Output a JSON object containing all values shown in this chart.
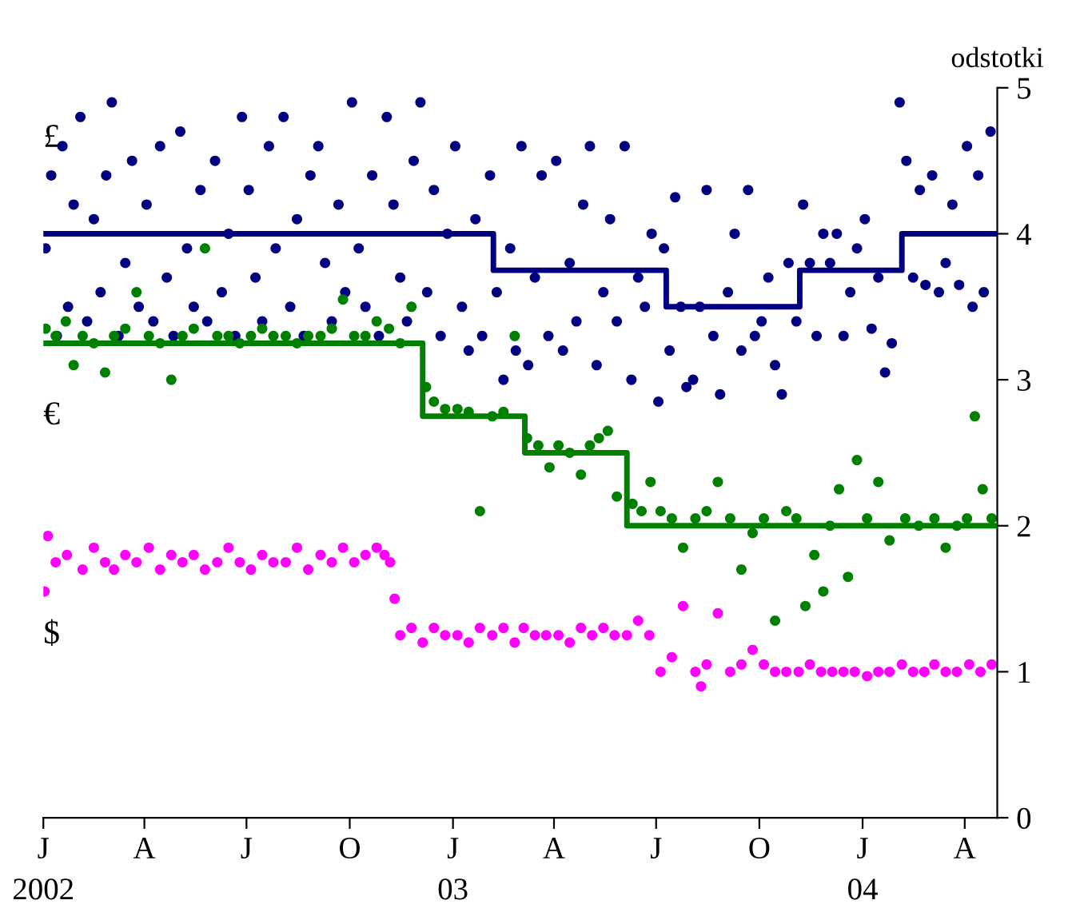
{
  "chart_data": {
    "type": "scatter",
    "ylabel": "odstotki",
    "xlim": [
      "2002-01-01",
      "2004-04-30"
    ],
    "xticks": [
      {
        "value": "2002-01-01",
        "label": "J\n2002"
      },
      {
        "value": "2002-04-01",
        "label": "A"
      },
      {
        "value": "2002-07-01",
        "label": "J"
      },
      {
        "value": "2002-10-01",
        "label": "O"
      },
      {
        "value": "2003-01-01",
        "label": "J\n03"
      },
      {
        "value": "2003-04-01",
        "label": "A"
      },
      {
        "value": "2003-07-01",
        "label": "J"
      },
      {
        "value": "2003-10-01",
        "label": "O"
      },
      {
        "value": "2004-01-01",
        "label": "J\n04"
      },
      {
        "value": "2004-04-01",
        "label": "A"
      }
    ],
    "ylim": [
      0,
      5
    ],
    "yticks": [
      0,
      1,
      2,
      3,
      4,
      5
    ],
    "grid": false,
    "legend": false,
    "marker": "circle",
    "series": [
      {
        "name": "£",
        "color": "#000080",
        "x": [
          "2002-01-03",
          "2002-01-08",
          "2002-01-13",
          "2002-01-18",
          "2002-01-23",
          "2002-01-28",
          "2002-02-03",
          "2002-02-09",
          "2002-02-15",
          "2002-02-21",
          "2002-02-26",
          "2002-03-03",
          "2002-03-09",
          "2002-03-15",
          "2002-03-21",
          "2002-03-27",
          "2002-04-03",
          "2002-04-09",
          "2002-04-15",
          "2002-04-21",
          "2002-04-27",
          "2002-05-03",
          "2002-05-09",
          "2002-05-15",
          "2002-05-21",
          "2002-05-27",
          "2002-06-03",
          "2002-06-09",
          "2002-06-15",
          "2002-06-21",
          "2002-06-27",
          "2002-07-03",
          "2002-07-09",
          "2002-07-15",
          "2002-07-21",
          "2002-07-27",
          "2002-08-03",
          "2002-08-09",
          "2002-08-15",
          "2002-08-21",
          "2002-08-27",
          "2002-09-03",
          "2002-09-09",
          "2002-09-15",
          "2002-09-21",
          "2002-09-27",
          "2002-10-03",
          "2002-10-09",
          "2002-10-15",
          "2002-10-21",
          "2002-10-27",
          "2002-11-03",
          "2002-11-09",
          "2002-11-15",
          "2002-11-21",
          "2002-11-27",
          "2002-12-03",
          "2002-12-09",
          "2002-12-15",
          "2002-12-21",
          "2002-12-27",
          "2003-01-03",
          "2003-01-09",
          "2003-01-15",
          "2003-01-21",
          "2003-01-27",
          "2003-02-03",
          "2003-02-09",
          "2003-02-15",
          "2003-02-21",
          "2003-02-26",
          "2003-03-03",
          "2003-03-09",
          "2003-03-15",
          "2003-03-21",
          "2003-03-27",
          "2003-04-03",
          "2003-04-09",
          "2003-04-15",
          "2003-04-21",
          "2003-04-27",
          "2003-05-03",
          "2003-05-09",
          "2003-05-15",
          "2003-05-21",
          "2003-05-27",
          "2003-06-03",
          "2003-06-09",
          "2003-06-15",
          "2003-06-21",
          "2003-06-27",
          "2003-07-03",
          "2003-07-08",
          "2003-07-13",
          "2003-07-18",
          "2003-07-23",
          "2003-07-28",
          "2003-08-03",
          "2003-08-09",
          "2003-08-15",
          "2003-08-21",
          "2003-08-27",
          "2003-09-03",
          "2003-09-09",
          "2003-09-15",
          "2003-09-21",
          "2003-09-27",
          "2003-10-03",
          "2003-10-09",
          "2003-10-15",
          "2003-10-21",
          "2003-10-27",
          "2003-11-03",
          "2003-11-09",
          "2003-11-15",
          "2003-11-21",
          "2003-11-27",
          "2003-12-03",
          "2003-12-09",
          "2003-12-15",
          "2003-12-21",
          "2003-12-27",
          "2004-01-03",
          "2004-01-09",
          "2004-01-15",
          "2004-01-21",
          "2004-01-27",
          "2004-02-03",
          "2004-02-09",
          "2004-02-15",
          "2004-02-21",
          "2004-02-26",
          "2004-03-03",
          "2004-03-09",
          "2004-03-15",
          "2004-03-21",
          "2004-03-27",
          "2004-04-03",
          "2004-04-08",
          "2004-04-13",
          "2004-04-18",
          "2004-04-24"
        ],
        "values": [
          3.9,
          4.4,
          3.3,
          4.6,
          3.5,
          4.2,
          4.8,
          3.4,
          4.1,
          3.6,
          4.4,
          4.9,
          3.3,
          3.8,
          4.5,
          3.5,
          4.2,
          3.4,
          4.6,
          3.7,
          3.3,
          4.7,
          3.9,
          3.5,
          4.3,
          3.4,
          4.5,
          3.6,
          4.0,
          3.3,
          4.8,
          4.3,
          3.7,
          3.4,
          4.6,
          3.9,
          4.8,
          3.5,
          4.1,
          3.3,
          4.4,
          4.6,
          3.8,
          3.4,
          4.2,
          3.6,
          4.9,
          3.9,
          3.5,
          4.4,
          3.3,
          4.8,
          4.2,
          3.7,
          3.4,
          4.5,
          4.9,
          3.6,
          4.3,
          3.3,
          4.0,
          4.6,
          3.5,
          3.2,
          4.1,
          3.3,
          4.4,
          3.6,
          3.0,
          3.9,
          3.2,
          4.6,
          3.1,
          3.7,
          4.4,
          3.3,
          4.5,
          3.2,
          3.8,
          3.4,
          4.2,
          4.6,
          3.1,
          3.6,
          4.1,
          3.4,
          4.6,
          3.0,
          3.7,
          3.5,
          4.0,
          2.85,
          3.9,
          3.2,
          4.25,
          3.5,
          2.95,
          3.0,
          3.5,
          4.3,
          3.3,
          2.9,
          3.6,
          4.0,
          3.2,
          4.3,
          3.3,
          3.4,
          3.7,
          3.1,
          2.9,
          3.8,
          3.4,
          4.2,
          3.8,
          3.3,
          4.0,
          3.8,
          4.0,
          3.3,
          3.6,
          3.9,
          4.1,
          3.35,
          3.7,
          3.05,
          3.25,
          4.9,
          4.5,
          3.7,
          4.3,
          3.65,
          4.4,
          3.6,
          3.8,
          4.2,
          3.65,
          4.6,
          3.5,
          4.4,
          3.6,
          4.7
        ]
      },
      {
        "type": "step",
        "marker": "none",
        "color": "#000080",
        "x": [
          "2002-01-01",
          "2003-02-06",
          "2003-07-10",
          "2003-11-06",
          "2004-02-05",
          "2004-04-30"
        ],
        "values": [
          4.0,
          3.75,
          3.5,
          3.75,
          4.0,
          4.0
        ]
      },
      {
        "name": "€",
        "color": "#008000",
        "x": [
          "2002-01-03",
          "2002-01-12",
          "2002-01-21",
          "2002-01-28",
          "2002-02-05",
          "2002-02-15",
          "2002-02-25",
          "2002-03-05",
          "2002-03-15",
          "2002-03-25",
          "2002-04-05",
          "2002-04-15",
          "2002-04-25",
          "2002-05-05",
          "2002-05-15",
          "2002-05-25",
          "2002-06-05",
          "2002-06-15",
          "2002-06-25",
          "2002-07-05",
          "2002-07-15",
          "2002-07-25",
          "2002-08-05",
          "2002-08-15",
          "2002-08-25",
          "2002-09-05",
          "2002-09-15",
          "2002-09-25",
          "2002-10-05",
          "2002-10-15",
          "2002-10-25",
          "2002-11-05",
          "2002-11-15",
          "2002-11-25",
          "2002-12-08",
          "2002-12-15",
          "2002-12-25",
          "2003-01-05",
          "2003-01-15",
          "2003-01-25",
          "2003-02-05",
          "2003-02-15",
          "2003-02-25",
          "2003-03-08",
          "2003-03-18",
          "2003-03-28",
          "2003-04-05",
          "2003-04-15",
          "2003-04-25",
          "2003-05-03",
          "2003-05-11",
          "2003-05-19",
          "2003-05-27",
          "2003-06-10",
          "2003-06-18",
          "2003-06-26",
          "2003-07-05",
          "2003-07-15",
          "2003-07-25",
          "2003-08-05",
          "2003-08-15",
          "2003-08-25",
          "2003-09-05",
          "2003-09-15",
          "2003-09-25",
          "2003-10-05",
          "2003-10-15",
          "2003-10-25",
          "2003-11-03",
          "2003-11-11",
          "2003-11-19",
          "2003-11-27",
          "2003-12-03",
          "2003-12-11",
          "2003-12-19",
          "2003-12-27",
          "2004-01-05",
          "2004-01-15",
          "2004-01-25",
          "2004-02-08",
          "2004-02-20",
          "2004-03-05",
          "2004-03-15",
          "2004-03-25",
          "2004-04-03",
          "2004-04-10",
          "2004-04-17",
          "2004-04-25"
        ],
        "values": [
          3.35,
          3.3,
          3.4,
          3.1,
          3.3,
          3.25,
          3.05,
          3.3,
          3.35,
          3.6,
          3.3,
          3.25,
          3.0,
          3.3,
          3.35,
          3.9,
          3.3,
          3.3,
          3.25,
          3.3,
          3.35,
          3.3,
          3.3,
          3.25,
          3.3,
          3.3,
          3.35,
          3.55,
          3.3,
          3.3,
          3.4,
          3.35,
          3.25,
          3.5,
          2.95,
          2.85,
          2.8,
          2.8,
          2.78,
          2.1,
          2.75,
          2.78,
          3.3,
          2.6,
          2.55,
          2.4,
          2.55,
          2.5,
          2.35,
          2.55,
          2.6,
          2.65,
          2.2,
          2.15,
          2.1,
          2.3,
          2.1,
          2.05,
          1.85,
          2.05,
          2.1,
          2.3,
          2.05,
          1.7,
          1.95,
          2.05,
          1.35,
          2.1,
          2.05,
          1.45,
          1.8,
          1.55,
          2.0,
          2.25,
          1.65,
          2.45,
          2.05,
          2.3,
          1.9,
          2.05,
          2.0,
          2.05,
          1.85,
          2.0,
          2.05,
          2.75,
          2.25,
          2.05
        ]
      },
      {
        "type": "step",
        "marker": "none",
        "color": "#008000",
        "x": [
          "2002-01-01",
          "2002-12-05",
          "2003-03-06",
          "2003-06-05",
          "2004-04-30"
        ],
        "values": [
          3.25,
          2.75,
          2.5,
          2.0,
          2.0
        ]
      },
      {
        "name": "$",
        "color": "#ff00ff",
        "x": [
          "2002-01-02",
          "2002-01-05",
          "2002-01-12",
          "2002-01-22",
          "2002-02-05",
          "2002-02-15",
          "2002-02-25",
          "2002-03-05",
          "2002-03-15",
          "2002-03-25",
          "2002-04-05",
          "2002-04-15",
          "2002-04-25",
          "2002-05-05",
          "2002-05-15",
          "2002-05-25",
          "2002-06-05",
          "2002-06-15",
          "2002-06-25",
          "2002-07-05",
          "2002-07-15",
          "2002-07-25",
          "2002-08-05",
          "2002-08-15",
          "2002-08-25",
          "2002-09-05",
          "2002-09-15",
          "2002-09-25",
          "2002-10-05",
          "2002-10-15",
          "2002-10-25",
          "2002-11-01",
          "2002-11-06",
          "2002-11-10",
          "2002-11-15",
          "2002-11-25",
          "2002-12-05",
          "2002-12-15",
          "2002-12-25",
          "2003-01-05",
          "2003-01-15",
          "2003-01-25",
          "2003-02-05",
          "2003-02-15",
          "2003-02-25",
          "2003-03-05",
          "2003-03-15",
          "2003-03-25",
          "2003-04-05",
          "2003-04-15",
          "2003-04-25",
          "2003-05-05",
          "2003-05-15",
          "2003-05-25",
          "2003-06-05",
          "2003-06-15",
          "2003-06-25",
          "2003-07-05",
          "2003-07-15",
          "2003-07-25",
          "2003-08-05",
          "2003-08-10",
          "2003-08-15",
          "2003-08-25",
          "2003-09-05",
          "2003-09-15",
          "2003-09-25",
          "2003-10-05",
          "2003-10-15",
          "2003-10-25",
          "2003-11-05",
          "2003-11-15",
          "2003-11-25",
          "2003-12-05",
          "2003-12-15",
          "2003-12-25",
          "2004-01-05",
          "2004-01-15",
          "2004-01-25",
          "2004-02-05",
          "2004-02-15",
          "2004-02-25",
          "2004-03-05",
          "2004-03-15",
          "2004-03-25",
          "2004-04-05",
          "2004-04-15",
          "2004-04-25"
        ],
        "values": [
          1.55,
          1.93,
          1.75,
          1.8,
          1.7,
          1.85,
          1.75,
          1.7,
          1.8,
          1.75,
          1.85,
          1.7,
          1.8,
          1.75,
          1.8,
          1.7,
          1.75,
          1.85,
          1.75,
          1.7,
          1.8,
          1.75,
          1.75,
          1.85,
          1.7,
          1.8,
          1.75,
          1.85,
          1.75,
          1.8,
          1.85,
          1.8,
          1.75,
          1.5,
          1.25,
          1.3,
          1.2,
          1.3,
          1.25,
          1.25,
          1.2,
          1.3,
          1.25,
          1.3,
          1.2,
          1.3,
          1.25,
          1.25,
          1.25,
          1.2,
          1.3,
          1.25,
          1.3,
          1.25,
          1.25,
          1.35,
          1.25,
          1.0,
          1.1,
          1.45,
          1.0,
          0.9,
          1.05,
          1.4,
          1.0,
          1.05,
          1.15,
          1.05,
          1.0,
          1.0,
          1.0,
          1.05,
          1.0,
          1.0,
          1.0,
          1.0,
          0.97,
          1.0,
          1.0,
          1.05,
          1.0,
          1.0,
          1.05,
          1.0,
          1.0,
          1.05,
          1.0,
          1.05
        ]
      }
    ]
  }
}
